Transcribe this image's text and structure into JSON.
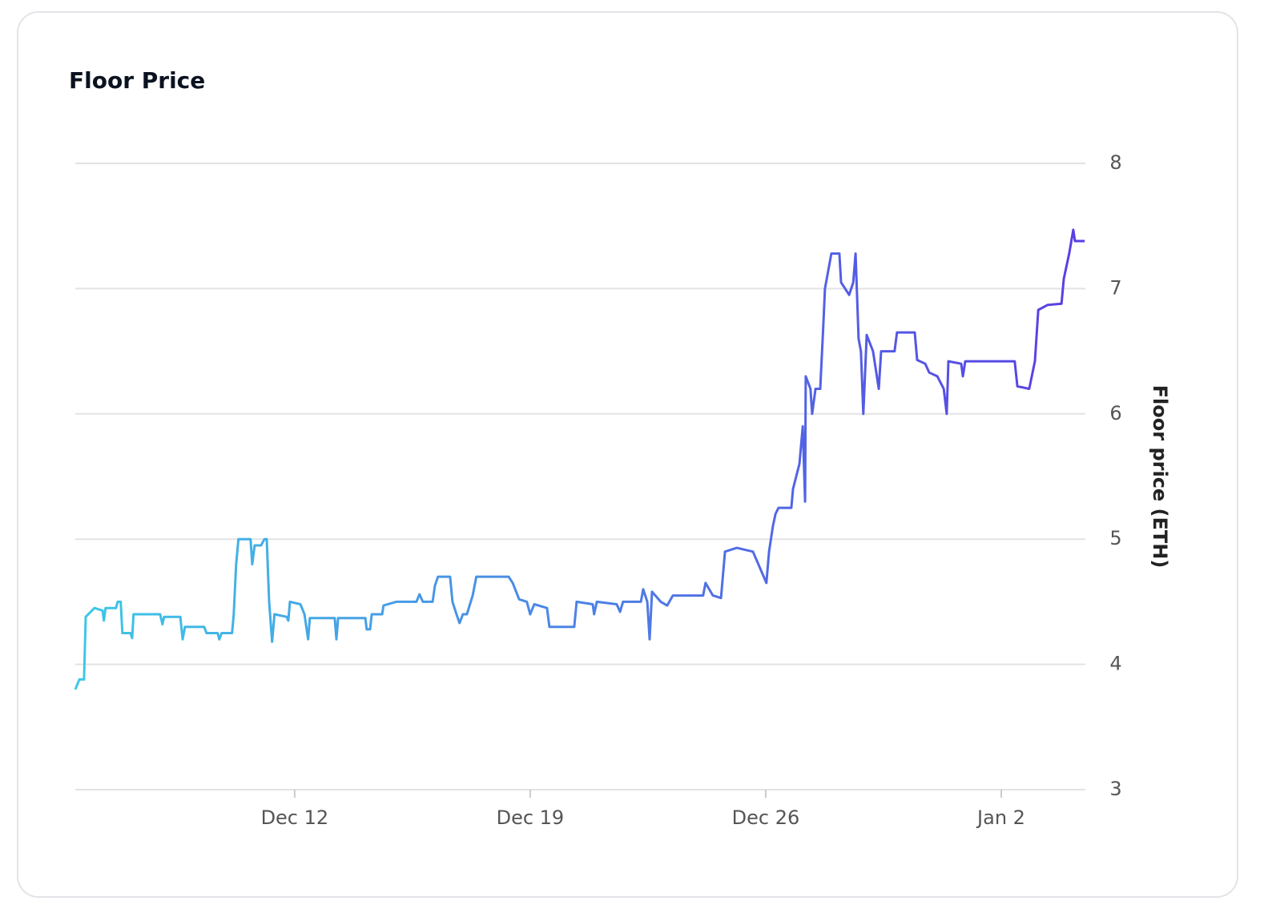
{
  "chart_data": {
    "type": "line",
    "title": "Floor Price",
    "y_label": "Floor price (ETH)",
    "x": [
      5.48,
      5.6,
      5.74,
      5.79,
      6.05,
      6.29,
      6.33,
      6.38,
      6.69,
      6.74,
      6.83,
      6.88,
      7.12,
      7.17,
      7.21,
      8.0,
      8.07,
      8.12,
      8.6,
      8.67,
      8.74,
      9.31,
      9.38,
      9.71,
      9.76,
      9.83,
      10.14,
      10.19,
      10.26,
      10.33,
      10.69,
      10.74,
      10.81,
      11.0,
      11.1,
      11.17,
      11.24,
      11.33,
      11.4,
      11.76,
      11.81,
      11.86,
      12.17,
      12.29,
      12.4,
      12.45,
      13.19,
      13.24,
      13.29,
      14.1,
      14.14,
      14.24,
      14.29,
      14.6,
      14.64,
      15.02,
      15.62,
      15.71,
      15.81,
      16.1,
      16.17,
      16.26,
      16.62,
      16.69,
      16.81,
      16.9,
      17.0,
      17.12,
      17.29,
      17.4,
      18.36,
      18.48,
      18.67,
      18.9,
      19.0,
      19.12,
      19.5,
      19.57,
      20.31,
      20.38,
      20.86,
      20.9,
      20.98,
      21.57,
      21.67,
      21.76,
      22.29,
      22.36,
      22.48,
      22.55,
      22.62,
      22.88,
      23.07,
      23.24,
      24.14,
      24.21,
      24.43,
      24.67,
      24.79,
      25.14,
      25.62,
      26.02,
      26.1,
      26.21,
      26.29,
      26.38,
      26.76,
      26.81,
      27.0,
      27.1,
      27.17,
      27.19,
      27.33,
      27.38,
      27.48,
      27.62,
      27.71,
      27.76,
      27.95,
      28.19,
      28.24,
      28.36,
      28.48,
      28.6,
      28.67,
      28.76,
      28.83,
      28.9,
      29.0,
      29.19,
      29.36,
      29.43,
      29.83,
      29.9,
      30.43,
      30.5,
      30.74,
      30.86,
      31.1,
      31.29,
      31.38,
      31.43,
      31.81,
      31.86,
      31.93,
      33.4,
      33.48,
      33.83,
      34.0,
      34.1,
      34.38,
      34.79,
      34.86,
      35.02,
      35.14,
      35.19,
      35.48
    ],
    "values": [
      3.8,
      3.88,
      3.88,
      4.38,
      4.45,
      4.43,
      4.35,
      4.45,
      4.45,
      4.5,
      4.5,
      4.25,
      4.25,
      4.21,
      4.4,
      4.4,
      4.32,
      4.38,
      4.38,
      4.2,
      4.3,
      4.3,
      4.25,
      4.25,
      4.2,
      4.25,
      4.25,
      4.4,
      4.8,
      5.0,
      5.0,
      4.8,
      4.95,
      4.95,
      5.0,
      5.0,
      4.5,
      4.18,
      4.4,
      4.38,
      4.35,
      4.5,
      4.48,
      4.4,
      4.2,
      4.37,
      4.37,
      4.2,
      4.37,
      4.37,
      4.28,
      4.28,
      4.4,
      4.4,
      4.47,
      4.5,
      4.5,
      4.56,
      4.5,
      4.5,
      4.63,
      4.7,
      4.7,
      4.5,
      4.4,
      4.33,
      4.4,
      4.4,
      4.55,
      4.7,
      4.7,
      4.65,
      4.52,
      4.5,
      4.4,
      4.48,
      4.45,
      4.3,
      4.3,
      4.5,
      4.48,
      4.4,
      4.5,
      4.48,
      4.42,
      4.5,
      4.5,
      4.6,
      4.5,
      4.2,
      4.58,
      4.5,
      4.47,
      4.55,
      4.55,
      4.65,
      4.55,
      4.53,
      4.9,
      4.93,
      4.9,
      4.65,
      4.9,
      5.1,
      5.2,
      5.25,
      5.25,
      5.4,
      5.6,
      5.9,
      5.3,
      6.3,
      6.2,
      6.0,
      6.2,
      6.2,
      6.7,
      7.0,
      7.28,
      7.28,
      7.05,
      7.0,
      6.95,
      7.05,
      7.28,
      6.6,
      6.5,
      6.0,
      6.63,
      6.5,
      6.2,
      6.5,
      6.5,
      6.65,
      6.65,
      6.43,
      6.4,
      6.33,
      6.3,
      6.2,
      6.0,
      6.42,
      6.4,
      6.3,
      6.42,
      6.42,
      6.22,
      6.2,
      6.42,
      6.83,
      6.87,
      6.88,
      7.08,
      7.28,
      7.47,
      7.38,
      7.38
    ],
    "colors": [
      "#3ec8e6",
      "#5a3de4"
    ],
    "xlim": [
      5.48,
      35.5
    ],
    "xticks": [
      {
        "value": 12,
        "label": "Dec 12"
      },
      {
        "value": 19,
        "label": "Dec 19"
      },
      {
        "value": 26,
        "label": "Dec 26"
      },
      {
        "value": 33,
        "label": "Jan 2"
      }
    ],
    "ylim": [
      3,
      8
    ],
    "yticks": [
      3,
      4,
      5,
      6,
      7,
      8
    ],
    "grid": true
  }
}
